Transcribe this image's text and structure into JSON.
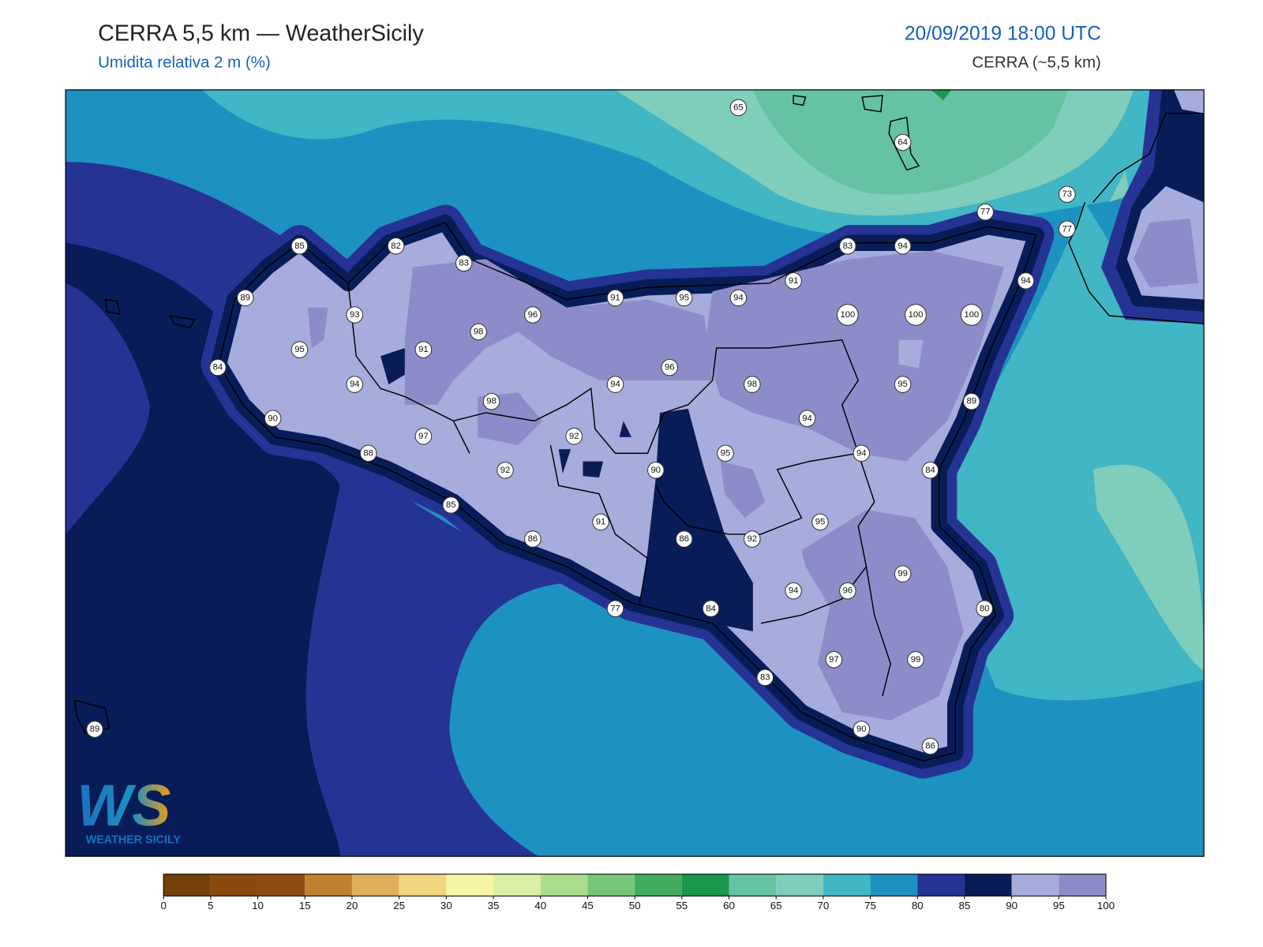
{
  "header": {
    "title": "CERRA 5,5 km — WeatherSicily",
    "subtitle": "Umidita relativa 2 m (%)",
    "datetime": "20/09/2019 18:00 UTC",
    "model": "CERRA (~5,5 km)"
  },
  "stations": {
    "values": [
      65,
      64,
      73,
      77,
      77,
      85,
      82,
      83,
      83,
      94,
      94,
      91,
      91,
      95,
      94,
      89,
      93,
      96,
      98,
      100,
      100,
      100,
      95,
      91,
      84,
      96,
      94,
      94,
      98,
      95,
      98,
      89,
      90,
      94,
      97,
      92,
      88,
      95,
      94,
      92,
      90,
      84,
      85,
      91,
      95,
      86,
      86,
      92,
      99,
      94,
      96,
      80,
      77,
      84,
      97,
      99,
      83,
      90,
      86,
      89
    ]
  },
  "colorbar": {
    "ticks": [
      0,
      5,
      10,
      15,
      20,
      25,
      30,
      35,
      40,
      45,
      50,
      55,
      60,
      65,
      70,
      75,
      80,
      85,
      90,
      95,
      100
    ],
    "colors": [
      "#733f0a",
      "#8a4a0e",
      "#8d4b12",
      "#bf812d",
      "#dfae5c",
      "#f0d57e",
      "#f7f4a6",
      "#d9efa4",
      "#acdd8e",
      "#78c679",
      "#41ab5d",
      "#19984b",
      "#66c2a4",
      "#7fcdbb",
      "#41b6c4",
      "#1d91c0",
      "#253494",
      "#081d58",
      "#a6acdc",
      "#8c8dc8"
    ]
  },
  "logo": {
    "mark": "WS",
    "name": "WEATHER SICILY"
  }
}
